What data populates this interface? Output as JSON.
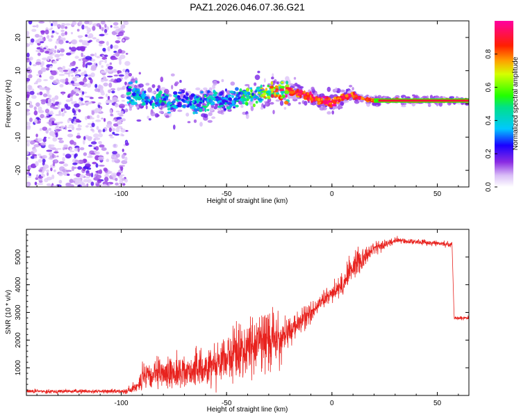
{
  "title": "PAZ1.2026.046.07.36.G21",
  "chart_data": [
    {
      "type": "heatmap",
      "name": "spectrogram",
      "xlabel": "Height of straight line (km)",
      "ylabel": "Frequency (Hz)",
      "xlim": [
        -145,
        65
      ],
      "ylim": [
        -25,
        25
      ],
      "xticks": [
        -100,
        -50,
        0,
        50
      ],
      "yticks": [
        -20,
        -10,
        0,
        10,
        20
      ],
      "colorbar": {
        "label": "Normalized spectral amplitude",
        "range": [
          0.0,
          1.0
        ],
        "ticks": [
          0.0,
          0.2,
          0.4,
          0.6,
          0.8
        ]
      },
      "ridge": {
        "x": [
          -95,
          -90,
          -85,
          -80,
          -75,
          -70,
          -65,
          -60,
          -55,
          -50,
          -45,
          -40,
          -35,
          -30,
          -25,
          -20,
          -15,
          -10,
          -5,
          0,
          5,
          10,
          15,
          20,
          30,
          40,
          50,
          65
        ],
        "freq": [
          3,
          2,
          0.5,
          1,
          0,
          1.5,
          0,
          1,
          2,
          0.5,
          1.5,
          2,
          3,
          4,
          4,
          3.5,
          3,
          2,
          1,
          0,
          2,
          2.5,
          1.5,
          1,
          1,
          1,
          1,
          1
        ],
        "amplitude": [
          0.45,
          0.5,
          0.4,
          0.45,
          0.4,
          0.45,
          0.4,
          0.45,
          0.45,
          0.4,
          0.5,
          0.55,
          0.6,
          0.75,
          0.85,
          0.9,
          0.95,
          0.95,
          0.95,
          1.0,
          0.95,
          1.0,
          0.9,
          0.9,
          1.0,
          1.0,
          1.0,
          1.0
        ]
      }
    },
    {
      "type": "line",
      "name": "snr",
      "xlabel": "Height of straight line (km)",
      "ylabel": "SNR (10 * v/v)",
      "xlim": [
        -145,
        65
      ],
      "ylim": [
        0,
        6000
      ],
      "xticks": [
        -100,
        -50,
        0,
        50
      ],
      "yticks": [
        1000,
        2000,
        3000,
        4000,
        5000
      ],
      "color": "#e8221e",
      "envelope": {
        "x": [
          -145,
          -100,
          -95,
          -90,
          -80,
          -70,
          -60,
          -50,
          -40,
          -30,
          -25,
          -20,
          -10,
          0,
          5,
          10,
          20,
          30,
          40,
          50,
          57,
          58,
          65
        ],
        "mean": [
          150,
          150,
          200,
          600,
          800,
          850,
          1000,
          1400,
          1700,
          2100,
          2000,
          2300,
          3000,
          3700,
          4000,
          4700,
          5300,
          5600,
          5550,
          5500,
          5450,
          2800,
          2800
        ],
        "noise": [
          70,
          70,
          150,
          500,
          550,
          600,
          700,
          900,
          1000,
          1100,
          900,
          500,
          400,
          300,
          400,
          600,
          250,
          120,
          100,
          100,
          100,
          70,
          70
        ]
      }
    }
  ]
}
